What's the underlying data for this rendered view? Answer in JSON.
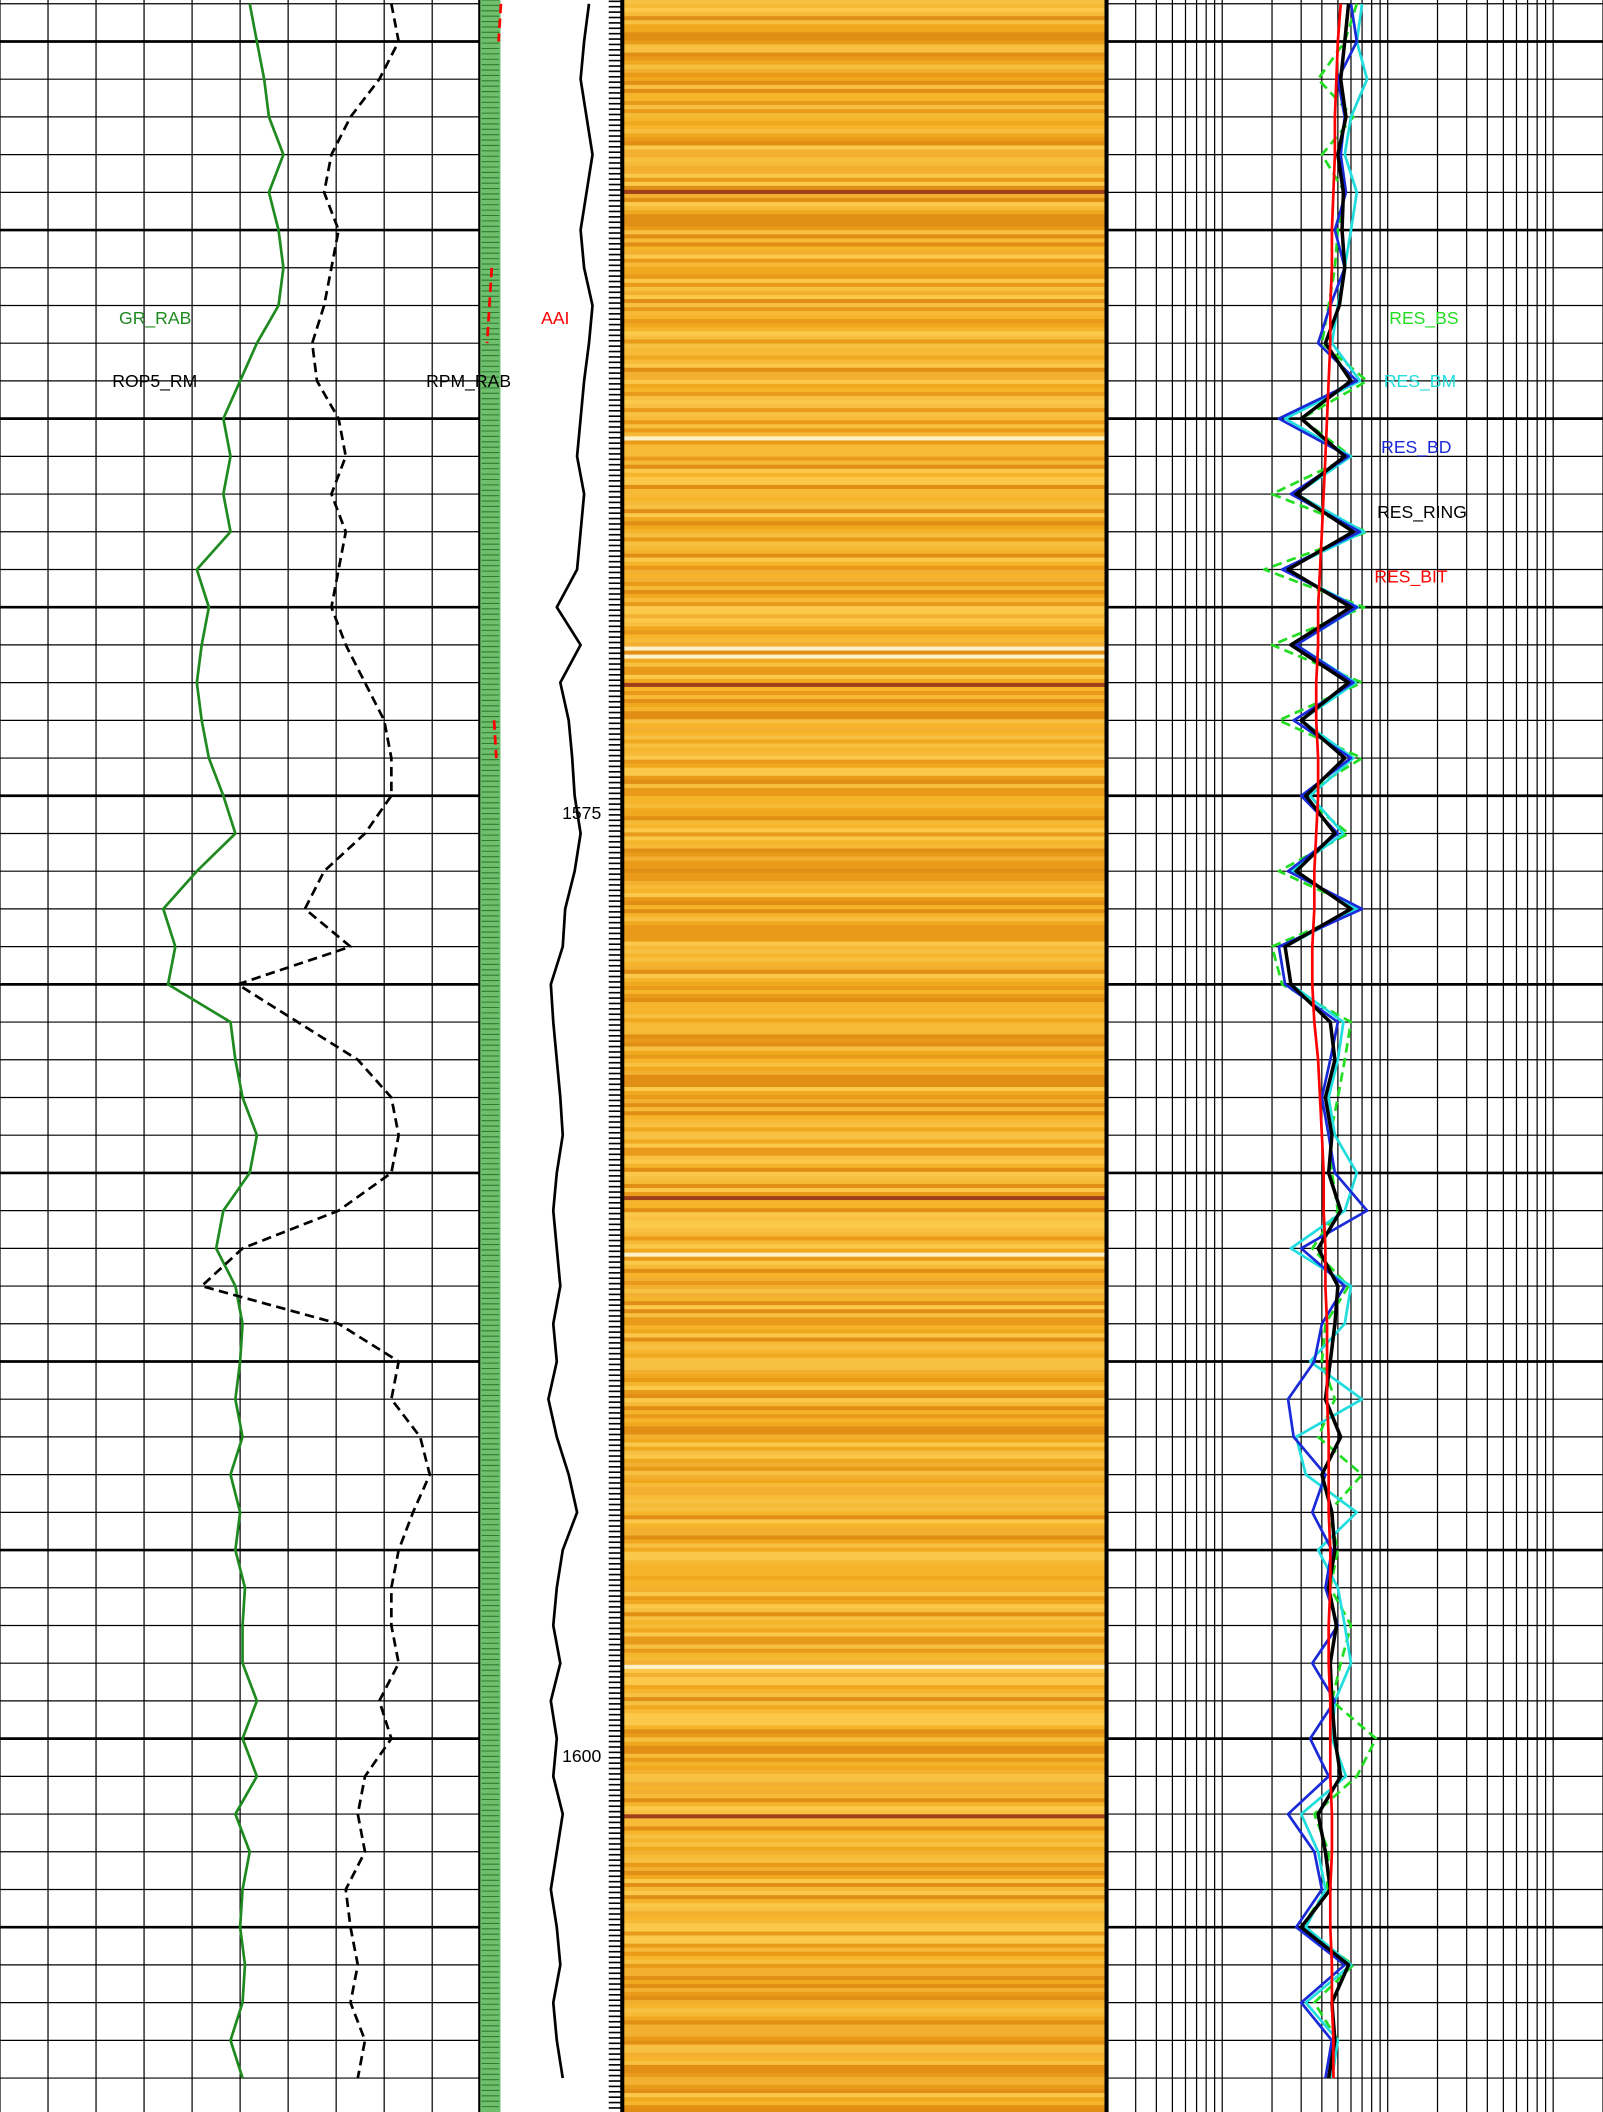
{
  "chart_data": {
    "type": "well-log",
    "ylim": [
      1553.9,
      1609.9
    ],
    "yticks": [
      1555,
      1560,
      1565,
      1570,
      1575,
      1580,
      1585,
      1590,
      1595,
      1600,
      1605
    ],
    "depth_labels": [
      1575,
      1600
    ],
    "depth": [
      1554,
      1555,
      1556,
      1557,
      1558,
      1559,
      1560,
      1561,
      1562,
      1563,
      1564,
      1565,
      1566,
      1567,
      1568,
      1569,
      1570,
      1571,
      1572,
      1573,
      1574,
      1575,
      1576,
      1577,
      1578,
      1579,
      1580,
      1581,
      1582,
      1583,
      1584,
      1585,
      1586,
      1587,
      1588,
      1589,
      1590,
      1591,
      1592,
      1593,
      1594,
      1595,
      1596,
      1597,
      1598,
      1599,
      1600,
      1601,
      1602,
      1603,
      1604,
      1605,
      1606,
      1607,
      1608,
      1609
    ],
    "tracks": [
      {
        "type": "line",
        "xlim": [
          0,
          10
        ],
        "xticks": [
          0,
          1,
          2,
          3,
          4,
          5,
          6,
          7,
          8,
          9,
          10
        ],
        "grid": true,
        "series": [
          {
            "name": "GR_RAB",
            "color": "#1f8a1f",
            "dashed": false,
            "values": [
              5.2,
              5.35,
              5.5,
              5.6,
              5.9,
              5.6,
              5.8,
              5.9,
              5.8,
              5.35,
              5.0,
              4.65,
              4.8,
              4.65,
              4.8,
              4.1,
              4.35,
              4.2,
              4.1,
              4.2,
              4.35,
              4.65,
              4.9,
              4.1,
              3.4,
              3.65,
              3.5,
              4.8,
              4.9,
              5.05,
              5.35,
              5.2,
              4.65,
              4.5,
              4.9,
              5.05,
              5.0,
              4.9,
              5.05,
              4.8,
              5.0,
              4.9,
              5.1,
              5.05,
              5.05,
              5.35,
              5.05,
              5.35,
              4.9,
              5.2,
              5.05,
              5.0,
              5.1,
              5.05,
              4.8,
              5.05
            ]
          },
          {
            "name": "ROP5_RM",
            "color": "#000000",
            "dashed": true,
            "values": [
              8.15,
              8.3,
              7.9,
              7.3,
              6.9,
              6.75,
              7.05,
              6.9,
              6.75,
              6.5,
              6.6,
              7.05,
              7.2,
              6.9,
              7.2,
              7.05,
              6.9,
              7.2,
              7.6,
              8.0,
              8.15,
              8.15,
              7.6,
              6.75,
              6.35,
              7.3,
              4.95,
              6.2,
              7.45,
              8.15,
              8.3,
              8.15,
              7.05,
              5.05,
              4.2,
              7.05,
              8.3,
              8.15,
              8.75,
              8.95,
              8.6,
              8.3,
              8.15,
              8.15,
              8.3,
              7.9,
              8.15,
              7.6,
              7.45,
              7.6,
              7.2,
              7.3,
              7.45,
              7.3,
              7.6,
              7.45
            ]
          }
        ]
      },
      {
        "type": "line",
        "xlim": [
          0,
          10
        ],
        "grid": false,
        "series": [
          {
            "name": "AAI",
            "color": "#ff0000",
            "dashed": true,
            "values": [
              9,
              8,
              null,
              7,
              null,
              6,
              null,
              5,
              4,
              3,
              null,
              5,
              null,
              6,
              null,
              4,
              null,
              5,
              null,
              6,
              7,
              null,
              5,
              null,
              6,
              null,
              4,
              null,
              5,
              null,
              6,
              null,
              5,
              null,
              7,
              null,
              5,
              null,
              6,
              null,
              5,
              null,
              4,
              null,
              6,
              null,
              5,
              null,
              4,
              null,
              5,
              null,
              6,
              null,
              5,
              null
            ]
          }
        ]
      },
      {
        "type": "line",
        "xlim": [
          0,
          10
        ],
        "grid": false,
        "series": [
          {
            "name": "RPM_RAB",
            "color": "#000000",
            "dashed": false,
            "values": [
              7.2,
              6.8,
              6.5,
              7.0,
              7.5,
              7.0,
              6.5,
              6.8,
              7.5,
              7.2,
              6.8,
              6.5,
              6.2,
              6.8,
              6.5,
              6.2,
              4.5,
              6.5,
              4.8,
              5.5,
              5.8,
              6.0,
              6.5,
              6.0,
              5.2,
              5.0,
              4.0,
              4.2,
              4.5,
              4.8,
              5.0,
              4.5,
              4.2,
              4.5,
              4.8,
              4.2,
              4.5,
              3.8,
              4.5,
              5.5,
              6.2,
              5.0,
              4.5,
              4.2,
              4.8,
              4.0,
              4.5,
              4.2,
              5.0,
              4.5,
              4.0,
              4.5,
              4.8,
              4.2,
              4.5,
              5.0
            ]
          }
        ]
      },
      {
        "type": "line",
        "log": true,
        "xlim": [
          0.2,
          200
        ],
        "xticks": [
          0.2,
          0.3,
          0.4,
          0.5,
          0.6,
          0.7,
          0.8,
          0.9,
          1,
          2,
          3,
          4,
          5,
          6,
          7,
          8,
          9,
          10,
          20,
          30,
          40,
          50,
          60,
          70,
          80,
          90,
          100,
          200
        ],
        "grid": true,
        "series": [
          {
            "name": "RES_BS",
            "color": "#22dd22",
            "dashed": true,
            "values": [
              6.5,
              5.5,
              3.8,
              6.2,
              4.0,
              5.5,
              5.0,
              4.8,
              4.4,
              4.0,
              7.5,
              3.0,
              6.0,
              2.0,
              7.5,
              1.8,
              7.2,
              2.0,
              7.0,
              2.2,
              7.0,
              3.0,
              5.8,
              2.2,
              6.8,
              2.0,
              2.3,
              6.0,
              5.5,
              5.0,
              4.5,
              4.6,
              5.0,
              3.5,
              5.8,
              4.2,
              4.0,
              4.8,
              3.8,
              7.0,
              4.4,
              5.0,
              4.5,
              6.0,
              5.2,
              4.6,
              8.5,
              6.5,
              3.6,
              4.4,
              4.3,
              3.0,
              6.2,
              3.6,
              5.0,
              4.6
            ]
          },
          {
            "name": "RES_BM",
            "color": "#22dddd",
            "dashed": false,
            "values": [
              7.0,
              6.5,
              7.5,
              6.0,
              5.5,
              6.5,
              6.0,
              5.5,
              5.0,
              4.6,
              6.8,
              2.4,
              6.0,
              2.8,
              7.2,
              2.4,
              6.6,
              2.8,
              6.4,
              3.0,
              6.2,
              3.4,
              5.4,
              2.6,
              6.5,
              2.4,
              2.6,
              5.4,
              5.0,
              4.4,
              4.8,
              6.5,
              5.5,
              2.6,
              6.0,
              5.5,
              3.4,
              7.0,
              2.8,
              3.2,
              6.5,
              3.8,
              5.0,
              5.5,
              6.0,
              4.8,
              4.6,
              5.6,
              3.0,
              3.8,
              4.2,
              3.2,
              6.0,
              3.2,
              5.0,
              4.6
            ]
          },
          {
            "name": "RES_BD",
            "color": "#1a2ad8",
            "dashed": false,
            "values": [
              6.0,
              6.5,
              5.0,
              5.5,
              5.2,
              5.6,
              4.8,
              5.5,
              4.5,
              3.8,
              6.5,
              2.2,
              5.8,
              2.6,
              6.8,
              2.3,
              6.5,
              2.8,
              6.2,
              2.7,
              6.0,
              3.0,
              5.0,
              2.5,
              7.0,
              2.2,
              2.4,
              5.0,
              4.5,
              4.0,
              4.4,
              4.8,
              7.5,
              3.0,
              5.5,
              4.0,
              3.6,
              2.5,
              2.7,
              4.2,
              3.5,
              4.6,
              4.2,
              5.0,
              3.5,
              4.8,
              3.4,
              4.4,
              2.5,
              3.6,
              4.0,
              2.8,
              5.5,
              3.0,
              4.6,
              4.2
            ]
          },
          {
            "name": "RES_RING",
            "color": "#000000",
            "dashed": false,
            "values": [
              5.8,
              5.5,
              5.2,
              5.6,
              5.0,
              5.4,
              5.3,
              5.5,
              5.1,
              4.2,
              6.0,
              3.0,
              5.5,
              2.8,
              6.2,
              2.5,
              6.0,
              2.6,
              5.8,
              3.0,
              5.5,
              3.2,
              4.8,
              2.8,
              6.0,
              2.4,
              2.6,
              4.5,
              4.8,
              4.2,
              4.6,
              4.4,
              5.2,
              3.8,
              5.0,
              4.8,
              4.5,
              4.2,
              5.2,
              4.0,
              4.6,
              4.8,
              4.4,
              4.9,
              4.5,
              4.6,
              4.8,
              5.2,
              3.8,
              4.2,
              4.5,
              3.0,
              5.8,
              4.6,
              4.8,
              4.4
            ]
          },
          {
            "name": "RES_BIT",
            "color": "#ff0000",
            "dashed": false,
            "values": [
              5.2,
              5.0,
              4.9,
              4.8,
              4.8,
              4.7,
              4.6,
              4.6,
              4.5,
              4.5,
              4.4,
              4.3,
              4.2,
              4.1,
              4.0,
              3.9,
              3.8,
              3.8,
              3.7,
              3.7,
              3.8,
              3.8,
              3.7,
              3.6,
              3.6,
              3.5,
              3.5,
              3.6,
              3.8,
              3.9,
              4.0,
              4.1,
              4.1,
              4.2,
              4.2,
              4.3,
              4.3,
              4.3,
              4.4,
              4.4,
              4.4,
              4.5,
              4.5,
              4.4,
              4.4,
              4.5,
              4.5,
              4.5,
              4.6,
              4.6,
              4.5,
              4.5,
              4.6,
              4.6,
              4.7,
              4.7
            ]
          }
        ]
      }
    ]
  }
}
